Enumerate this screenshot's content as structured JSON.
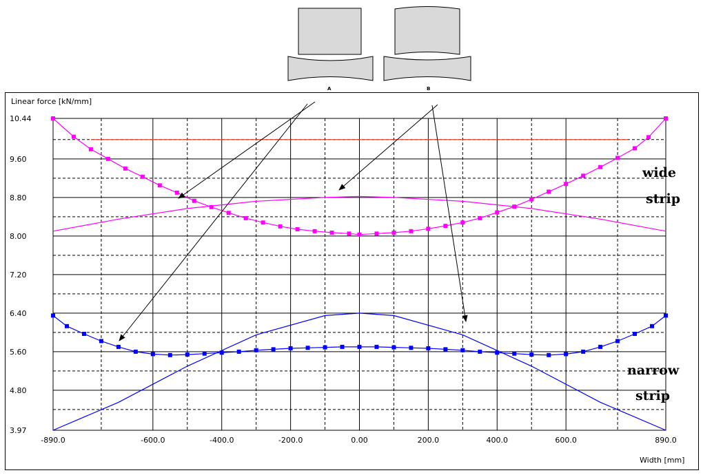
{
  "chart_data": {
    "type": "line",
    "title": "",
    "xlabel": "Width  [mm]",
    "ylabel": "Linear force  [kN/mm]",
    "xlim": [
      -890,
      890
    ],
    "ylim": [
      3.97,
      10.44
    ],
    "x_ticks": [
      {
        "v": -890,
        "label": "-890.0"
      },
      {
        "v": -600,
        "label": "-600.0"
      },
      {
        "v": -400,
        "label": "-400.0"
      },
      {
        "v": -200,
        "label": "-200.0"
      },
      {
        "v": 0,
        "label": "0.00"
      },
      {
        "v": 200,
        "label": "200.0"
      },
      {
        "v": 400,
        "label": "400.0"
      },
      {
        "v": 600,
        "label": "600.0"
      },
      {
        "v": 890,
        "label": "890.0"
      }
    ],
    "y_ticks": [
      {
        "v": 10.44,
        "label": "10.44"
      },
      {
        "v": 9.6,
        "label": "9.60"
      },
      {
        "v": 8.8,
        "label": "8.80"
      },
      {
        "v": 8.0,
        "label": "8.00"
      },
      {
        "v": 7.2,
        "label": "7.20"
      },
      {
        "v": 6.4,
        "label": "6.40"
      },
      {
        "v": 5.6,
        "label": "5.60"
      },
      {
        "v": 4.8,
        "label": "4.80"
      },
      {
        "v": 3.97,
        "label": "3.97"
      }
    ],
    "grid": true,
    "series": [
      {
        "color": "#e8341c",
        "style": "line",
        "x": [
          -780,
          780
        ],
        "y": [
          10.0,
          10.0
        ]
      },
      {
        "color": "#ff00ff",
        "style": "line",
        "x": [
          -890,
          -700,
          -500,
          -300,
          -100,
          0,
          100,
          300,
          500,
          700,
          890
        ],
        "y": [
          8.1,
          8.35,
          8.57,
          8.72,
          8.8,
          8.82,
          8.8,
          8.72,
          8.57,
          8.35,
          8.1
        ]
      },
      {
        "color": "#ff00ff",
        "style": "line-markers",
        "x": [
          -890,
          -830,
          -780,
          -730,
          -680,
          -630,
          -580,
          -530,
          -480,
          -430,
          -380,
          -330,
          -280,
          -230,
          -180,
          -130,
          -80,
          -30,
          0,
          50,
          100,
          150,
          200,
          250,
          300,
          350,
          400,
          450,
          500,
          550,
          600,
          650,
          700,
          750,
          800,
          840,
          890
        ],
        "y": [
          10.44,
          10.06,
          9.8,
          9.6,
          9.4,
          9.23,
          9.05,
          8.9,
          8.73,
          8.6,
          8.48,
          8.37,
          8.28,
          8.2,
          8.14,
          8.1,
          8.07,
          8.05,
          8.03,
          8.05,
          8.07,
          8.1,
          8.15,
          8.21,
          8.28,
          8.37,
          8.49,
          8.61,
          8.76,
          8.92,
          9.08,
          9.25,
          9.43,
          9.62,
          9.82,
          10.05,
          10.44
        ]
      },
      {
        "color": "#0000ff",
        "style": "line",
        "x": [
          -890,
          -700,
          -500,
          -300,
          -100,
          0,
          100,
          300,
          500,
          700,
          890
        ],
        "y": [
          3.97,
          4.55,
          5.3,
          5.95,
          6.35,
          6.4,
          6.35,
          5.95,
          5.3,
          4.55,
          3.97
        ]
      },
      {
        "color": "#0000ff",
        "style": "line-markers",
        "x": [
          -890,
          -850,
          -800,
          -750,
          -700,
          -650,
          -600,
          -550,
          -500,
          -450,
          -400,
          -350,
          -300,
          -250,
          -200,
          -150,
          -100,
          -50,
          0,
          50,
          100,
          150,
          200,
          250,
          300,
          350,
          400,
          450,
          500,
          550,
          600,
          650,
          700,
          750,
          800,
          850,
          890
        ],
        "y": [
          6.35,
          6.13,
          5.97,
          5.82,
          5.7,
          5.6,
          5.55,
          5.53,
          5.54,
          5.56,
          5.58,
          5.6,
          5.63,
          5.65,
          5.67,
          5.68,
          5.69,
          5.7,
          5.7,
          5.7,
          5.69,
          5.68,
          5.67,
          5.65,
          5.63,
          5.6,
          5.58,
          5.56,
          5.54,
          5.53,
          5.55,
          5.6,
          5.7,
          5.82,
          5.97,
          6.13,
          6.35
        ]
      }
    ],
    "annotations": [
      "wide",
      "strip",
      "narrow",
      "strip",
      "A",
      "B"
    ]
  }
}
